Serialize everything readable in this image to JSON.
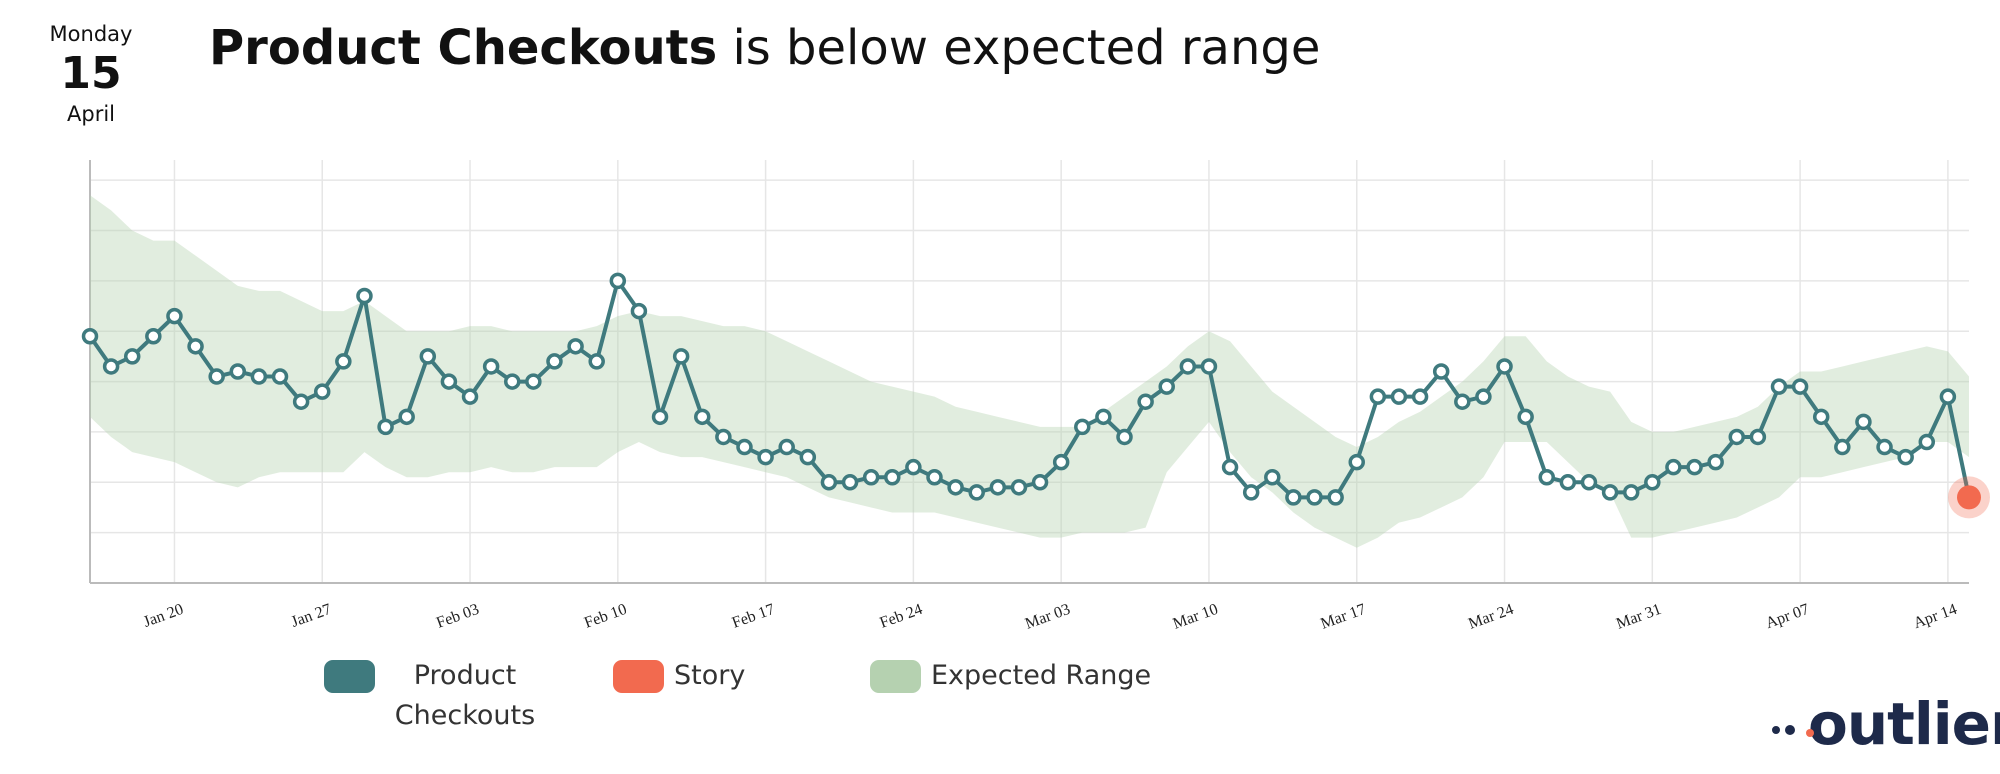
{
  "date": {
    "weekday": "Monday",
    "day": 15,
    "month": "April"
  },
  "logo": "outlier",
  "chart_data": {
    "type": "line",
    "title_parts": [
      "Product Checkouts",
      "is below expected range"
    ],
    "categories": [
      null,
      null,
      null,
      null,
      "Jan 20",
      null,
      null,
      null,
      null,
      null,
      null,
      "Jan 27",
      null,
      null,
      null,
      null,
      null,
      null,
      "Feb 03",
      null,
      null,
      null,
      null,
      null,
      null,
      "Feb 10",
      null,
      null,
      null,
      null,
      null,
      null,
      "Feb 17",
      null,
      null,
      null,
      null,
      null,
      null,
      "Feb 24",
      null,
      null,
      null,
      null,
      null,
      null,
      "Mar 03",
      null,
      null,
      null,
      null,
      null,
      null,
      "Mar 10",
      null,
      null,
      null,
      null,
      null,
      null,
      "Mar 17",
      null,
      null,
      null,
      null,
      null,
      null,
      "Mar 24",
      null,
      null,
      null,
      null,
      null,
      null,
      "Mar 31",
      null,
      null,
      null,
      null,
      null,
      null,
      "Apr 07",
      null,
      null,
      null,
      null,
      null,
      null,
      "Apr 14",
      null
    ],
    "ylim": [
      0,
      8.4
    ],
    "yticks": [
      1,
      2,
      3,
      4,
      5,
      6,
      7,
      8
    ],
    "grid": true,
    "series": [
      {
        "name": "Product Checkouts",
        "color": "#3f7a7e",
        "values": [
          4.9,
          4.3,
          4.5,
          4.9,
          5.3,
          4.7,
          4.1,
          4.2,
          4.1,
          4.1,
          3.6,
          3.8,
          4.4,
          5.7,
          3.1,
          3.3,
          4.5,
          4.0,
          3.7,
          4.3,
          4.0,
          4.0,
          4.4,
          4.7,
          4.4,
          6.0,
          5.4,
          3.3,
          4.5,
          3.3,
          2.9,
          2.7,
          2.5,
          2.7,
          2.5,
          2.0,
          2.0,
          2.1,
          2.1,
          2.3,
          2.1,
          1.9,
          1.8,
          1.9,
          1.9,
          2.0,
          2.4,
          3.1,
          3.3,
          2.9,
          3.6,
          3.9,
          4.3,
          4.3,
          2.3,
          1.8,
          2.1,
          1.7,
          1.7,
          1.7,
          2.4,
          3.7,
          3.7,
          3.7,
          4.2,
          3.6,
          3.7,
          4.3,
          3.3,
          2.1,
          2.0,
          2.0,
          1.8,
          1.8,
          2.0,
          2.3,
          2.3,
          2.4,
          2.9,
          2.9,
          3.9,
          3.9,
          3.3,
          2.7,
          3.2,
          2.7,
          2.5,
          2.8,
          3.7,
          1.7
        ]
      },
      {
        "name": "Story",
        "color": "#f26a4f",
        "values": [
          null,
          null,
          null,
          null,
          null,
          null,
          null,
          null,
          null,
          null,
          null,
          null,
          null,
          null,
          null,
          null,
          null,
          null,
          null,
          null,
          null,
          null,
          null,
          null,
          null,
          null,
          null,
          null,
          null,
          null,
          null,
          null,
          null,
          null,
          null,
          null,
          null,
          null,
          null,
          null,
          null,
          null,
          null,
          null,
          null,
          null,
          null,
          null,
          null,
          null,
          null,
          null,
          null,
          null,
          null,
          null,
          null,
          null,
          null,
          null,
          null,
          null,
          null,
          null,
          null,
          null,
          null,
          null,
          null,
          null,
          null,
          null,
          null,
          null,
          null,
          null,
          null,
          null,
          null,
          null,
          null,
          null,
          null,
          null,
          null,
          null,
          null,
          null,
          null,
          1.7
        ]
      },
      {
        "name": "Expected Range",
        "color": "#b5d1b0",
        "upper": [
          7.7,
          7.4,
          7.0,
          6.8,
          6.8,
          6.5,
          6.2,
          5.9,
          5.8,
          5.8,
          5.6,
          5.4,
          5.4,
          5.6,
          5.3,
          5.0,
          5.0,
          5.0,
          5.1,
          5.1,
          5.0,
          5.0,
          5.0,
          5.0,
          5.1,
          5.3,
          5.4,
          5.3,
          5.3,
          5.2,
          5.1,
          5.1,
          5.0,
          4.8,
          4.6,
          4.4,
          4.2,
          4.0,
          3.9,
          3.8,
          3.7,
          3.5,
          3.4,
          3.3,
          3.2,
          3.1,
          3.1,
          3.1,
          3.4,
          3.7,
          4.0,
          4.3,
          4.7,
          5.0,
          4.8,
          4.3,
          3.8,
          3.5,
          3.2,
          2.9,
          2.7,
          2.9,
          3.2,
          3.4,
          3.7,
          4.0,
          4.4,
          4.9,
          4.9,
          4.4,
          4.1,
          3.9,
          3.8,
          3.2,
          3.0,
          3.0,
          3.1,
          3.2,
          3.3,
          3.5,
          3.9,
          4.2,
          4.2,
          4.3,
          4.4,
          4.5,
          4.6,
          4.7,
          4.6,
          4.1
        ],
        "lower": [
          3.3,
          2.9,
          2.6,
          2.5,
          2.4,
          2.2,
          2.0,
          1.9,
          2.1,
          2.2,
          2.2,
          2.2,
          2.2,
          2.6,
          2.3,
          2.1,
          2.1,
          2.2,
          2.2,
          2.3,
          2.2,
          2.2,
          2.3,
          2.3,
          2.3,
          2.6,
          2.8,
          2.6,
          2.5,
          2.5,
          2.4,
          2.3,
          2.2,
          2.1,
          1.9,
          1.7,
          1.6,
          1.5,
          1.4,
          1.4,
          1.4,
          1.3,
          1.2,
          1.1,
          1.0,
          0.9,
          0.9,
          1.0,
          1.0,
          1.0,
          1.1,
          2.2,
          2.7,
          3.2,
          2.6,
          2.1,
          1.8,
          1.4,
          1.1,
          0.9,
          0.7,
          0.9,
          1.2,
          1.3,
          1.5,
          1.7,
          2.1,
          2.8,
          2.8,
          2.8,
          2.4,
          2.0,
          1.8,
          0.9,
          0.9,
          1.0,
          1.1,
          1.2,
          1.3,
          1.5,
          1.7,
          2.1,
          2.1,
          2.2,
          2.3,
          2.4,
          2.5,
          2.8,
          2.8,
          2.5
        ]
      }
    ]
  }
}
